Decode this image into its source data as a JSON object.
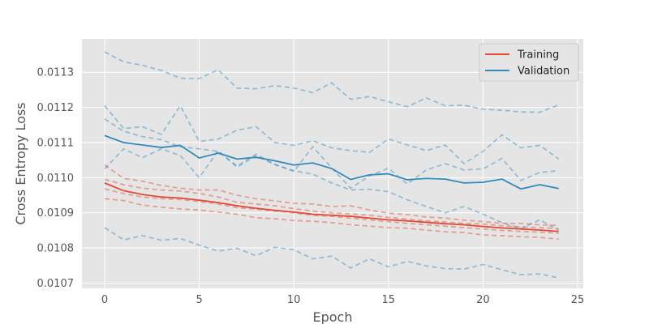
{
  "chart_data": {
    "type": "line",
    "xlabel": "Epoch",
    "ylabel": "Cross Entropy Loss",
    "xlim": [
      -1.2,
      25.3
    ],
    "ylim": [
      0.010685,
      0.011395
    ],
    "xticks": [
      0,
      5,
      10,
      15,
      20,
      25
    ],
    "yticks": [
      0.0107,
      0.0108,
      0.0109,
      0.011,
      0.0111,
      0.0112,
      0.0113
    ],
    "ytick_labels": [
      "0.0107",
      "0.0108",
      "0.0109",
      "0.0110",
      "0.0111",
      "0.0112",
      "0.0113"
    ],
    "grid": true,
    "legend_position": "top-right",
    "x": [
      0,
      1,
      2,
      3,
      4,
      5,
      6,
      7,
      8,
      9,
      10,
      11,
      12,
      13,
      14,
      15,
      16,
      17,
      18,
      19,
      20,
      21,
      22,
      23,
      24
    ],
    "series": [
      {
        "name": "Training",
        "color": "#E24A33",
        "style": "solid",
        "values": [
          0.010985,
          0.010963,
          0.010952,
          0.010945,
          0.010942,
          0.010936,
          0.010929,
          0.01092,
          0.010913,
          0.010907,
          0.010902,
          0.010896,
          0.010893,
          0.01089,
          0.010885,
          0.01088,
          0.010877,
          0.010873,
          0.010869,
          0.010866,
          0.010861,
          0.010857,
          0.010854,
          0.010851,
          0.010847
        ]
      },
      {
        "name": "Validation",
        "color": "#348ABD",
        "style": "solid",
        "values": [
          0.01112,
          0.0111,
          0.011093,
          0.011086,
          0.011092,
          0.011056,
          0.01107,
          0.011053,
          0.011058,
          0.011048,
          0.011036,
          0.011042,
          0.011026,
          0.010995,
          0.011008,
          0.011011,
          0.010994,
          0.010998,
          0.010996,
          0.010985,
          0.010987,
          0.010996,
          0.010968,
          0.01098,
          0.010969
        ]
      }
    ],
    "extra_runs": [
      {
        "color": "#E24A33",
        "values": [
          0.011036,
          0.010998,
          0.01099,
          0.010978,
          0.01097,
          0.010965,
          0.010965,
          0.01095,
          0.01094,
          0.010934,
          0.010927,
          0.010925,
          0.010918,
          0.01092,
          0.010908,
          0.010899,
          0.010895,
          0.010888,
          0.010885,
          0.010879,
          0.010875,
          0.01087,
          0.01087,
          0.010866,
          0.010864
        ]
      },
      {
        "color": "#E24A33",
        "values": [
          0.010995,
          0.01098,
          0.01097,
          0.010965,
          0.010962,
          0.010955,
          0.010945,
          0.01093,
          0.010925,
          0.01092,
          0.010912,
          0.010905,
          0.0109,
          0.010897,
          0.010893,
          0.010887,
          0.010882,
          0.010877,
          0.010874,
          0.01087,
          0.010868,
          0.010863,
          0.01086,
          0.010858,
          0.010855
        ]
      },
      {
        "color": "#E24A33",
        "values": [
          0.010968,
          0.010955,
          0.010945,
          0.01094,
          0.010938,
          0.010932,
          0.010925,
          0.010915,
          0.01091,
          0.010905,
          0.0109,
          0.010893,
          0.01089,
          0.010885,
          0.01088,
          0.010875,
          0.01087,
          0.010866,
          0.010862,
          0.010858,
          0.010854,
          0.01085,
          0.010847,
          0.010845,
          0.010842
        ]
      },
      {
        "color": "#E24A33",
        "values": [
          0.01094,
          0.010935,
          0.010922,
          0.010916,
          0.010911,
          0.010908,
          0.010902,
          0.010896,
          0.010886,
          0.010883,
          0.010878,
          0.010876,
          0.010872,
          0.010866,
          0.010862,
          0.010858,
          0.010856,
          0.010851,
          0.010846,
          0.010844,
          0.010837,
          0.010835,
          0.010832,
          0.01083,
          0.010825
        ]
      },
      {
        "color": "#348ABD",
        "values": [
          0.011358,
          0.01133,
          0.01132,
          0.011305,
          0.011283,
          0.011282,
          0.011307,
          0.011255,
          0.011253,
          0.011262,
          0.011255,
          0.011242,
          0.01127,
          0.011223,
          0.011231,
          0.011216,
          0.011202,
          0.011227,
          0.011205,
          0.011206,
          0.011195,
          0.011192,
          0.011187,
          0.011186,
          0.011207
        ]
      },
      {
        "color": "#348ABD",
        "values": [
          0.011205,
          0.01114,
          0.011145,
          0.011123,
          0.011205,
          0.011103,
          0.01111,
          0.011135,
          0.011145,
          0.0111,
          0.011092,
          0.011105,
          0.011085,
          0.011077,
          0.011072,
          0.01111,
          0.011093,
          0.011077,
          0.011093,
          0.01104,
          0.011075,
          0.011122,
          0.011085,
          0.011092,
          0.011053
        ]
      },
      {
        "color": "#348ABD",
        "values": [
          0.011167,
          0.011132,
          0.011117,
          0.011108,
          0.011088,
          0.011082,
          0.011075,
          0.011033,
          0.011067,
          0.011038,
          0.011018,
          0.011088,
          0.011028,
          0.01097,
          0.011005,
          0.011027,
          0.010982,
          0.011022,
          0.01104,
          0.011022,
          0.011025,
          0.011055,
          0.010992,
          0.011015,
          0.01102
        ]
      },
      {
        "color": "#348ABD",
        "values": [
          0.011025,
          0.011082,
          0.011057,
          0.011082,
          0.011063,
          0.011,
          0.011077,
          0.01103,
          0.011062,
          0.011037,
          0.01102,
          0.01101,
          0.010985,
          0.010965,
          0.010967,
          0.01096,
          0.010937,
          0.010918,
          0.0109,
          0.010918,
          0.010896,
          0.010872,
          0.010855,
          0.01088,
          0.01085
        ]
      },
      {
        "color": "#348ABD",
        "values": [
          0.010858,
          0.010823,
          0.010835,
          0.010822,
          0.010827,
          0.010808,
          0.010791,
          0.010799,
          0.010778,
          0.010802,
          0.010795,
          0.010769,
          0.010777,
          0.010743,
          0.010769,
          0.010746,
          0.010762,
          0.010749,
          0.010741,
          0.01074,
          0.010753,
          0.010738,
          0.010724,
          0.010726,
          0.010715
        ]
      }
    ]
  }
}
